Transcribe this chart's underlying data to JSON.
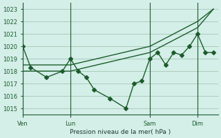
{
  "background_color": "#d4eee8",
  "grid_color": "#aaccbb",
  "line_color": "#1a5c2a",
  "marker_color": "#1a5c2a",
  "ylabel_text": "Pression niveau de la mer( hPa )",
  "ylim": [
    1014.5,
    1023.5
  ],
  "yticks": [
    1015,
    1016,
    1017,
    1018,
    1019,
    1020,
    1021,
    1022,
    1023
  ],
  "xtick_labels": [
    "Ven",
    "Lun",
    "Sam",
    "Dim"
  ],
  "xtick_positions": [
    0,
    3,
    8,
    11
  ],
  "vlines": [
    0,
    3,
    8,
    11
  ],
  "series1_x": [
    0,
    0.5,
    1.5,
    2.5,
    3.0,
    3.5,
    4.0,
    4.5,
    5.5,
    6.5,
    7.0,
    7.5,
    8.0,
    8.5,
    9.0,
    9.5,
    10.0,
    10.5,
    11.0,
    11.5,
    12.0
  ],
  "series1_y": [
    1020.0,
    1018.3,
    1017.5,
    1018.0,
    1019.0,
    1018.0,
    1017.5,
    1016.5,
    1015.8,
    1015.0,
    1017.0,
    1017.2,
    1019.0,
    1019.5,
    1018.5,
    1019.5,
    1019.3,
    1020.0,
    1021.0,
    1019.5,
    1019.5
  ],
  "series2_x": [
    0,
    3,
    8,
    11,
    12
  ],
  "series2_y": [
    1018.0,
    1018.0,
    1019.5,
    1021.5,
    1023.0
  ],
  "series3_x": [
    0,
    3,
    8,
    11,
    12
  ],
  "series3_y": [
    1018.5,
    1018.5,
    1020.0,
    1022.0,
    1023.0
  ],
  "xmin": 0,
  "xmax": 12.3
}
